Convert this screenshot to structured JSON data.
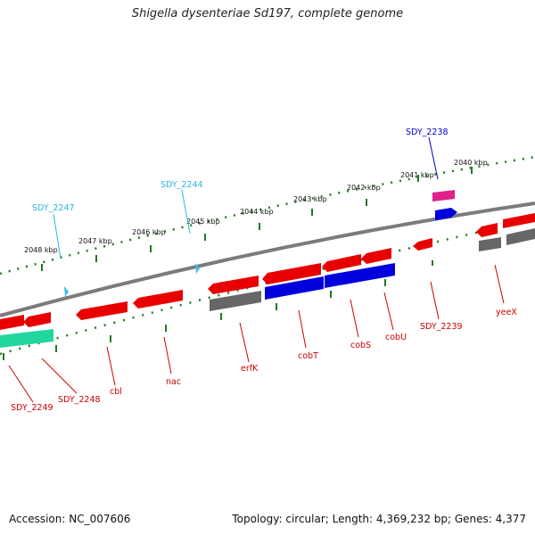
{
  "title": "Shigella dysenteriae Sd197, complete genome",
  "footer": {
    "accession": "Accession: NC_007606",
    "summary": "Topology: circular; Length: 4,369,232 bp; Genes: 4,377"
  },
  "colors": {
    "backbone": "#7b7b7b",
    "ticks": "#1e7a1e",
    "gene_red": "#e80000",
    "gene_blue": "#0000dd",
    "gene_grey": "#666666",
    "gene_green": "#22d6a0",
    "gene_pink": "#e0218a",
    "marker_cyan": "#3bbfe8",
    "label_red": "#cc0000",
    "label_blue": "#0000cc",
    "label_cyan": "#29b6e0"
  },
  "kbp_labels": [
    "2040 kbp",
    "2041 kbp",
    "2042 kbp",
    "2043 kbp",
    "2044 kbp",
    "2045 kbp",
    "2046 kbp",
    "2047 kbp",
    "2048 kbp"
  ],
  "gene_labels": [
    {
      "text": "SDY_2238",
      "color": "blue"
    },
    {
      "text": "SDY_2244",
      "color": "cyan"
    },
    {
      "text": "SDY_2247",
      "color": "cyan"
    },
    {
      "text": "SDY_2249",
      "color": "red"
    },
    {
      "text": "SDY_2248",
      "color": "red"
    },
    {
      "text": "cbl",
      "color": "red"
    },
    {
      "text": "nac",
      "color": "red"
    },
    {
      "text": "erfK",
      "color": "red"
    },
    {
      "text": "cobT",
      "color": "red"
    },
    {
      "text": "cobS",
      "color": "red"
    },
    {
      "text": "cobU",
      "color": "red"
    },
    {
      "text": "SDY_2239",
      "color": "red"
    },
    {
      "text": "yeeX",
      "color": "red"
    }
  ]
}
